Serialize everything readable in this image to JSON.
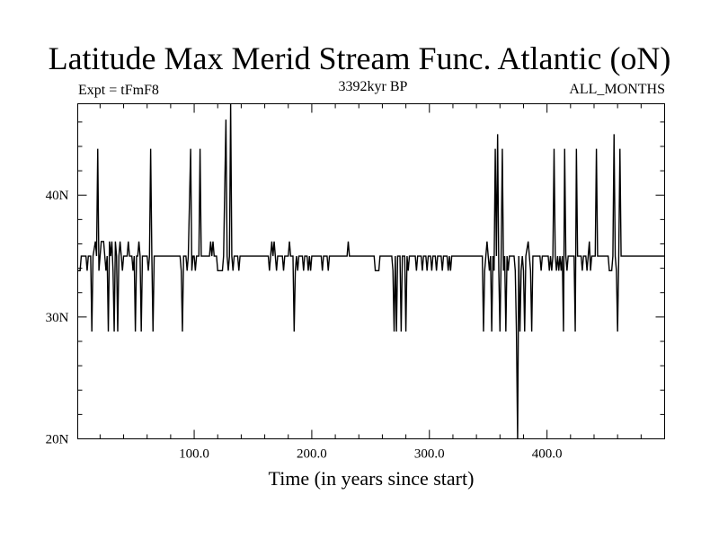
{
  "chart_data": {
    "type": "line",
    "title": "Latitude Max Merid Stream Func. Atlantic (oN)",
    "subtitle_left": "Expt = tFmF8",
    "subtitle_center": "3392kyr BP",
    "subtitle_right": "ALL_MONTHS",
    "xlabel": "Time (in years since start)",
    "ylabel": "",
    "xlim": [
      1,
      500
    ],
    "ylim": [
      20,
      47.5
    ],
    "x_ticks": [
      100,
      200,
      300,
      400
    ],
    "x_tick_labels": [
      "100.0",
      "200.0",
      "300.0",
      "400.0"
    ],
    "y_ticks": [
      20,
      30,
      40
    ],
    "y_tick_labels": [
      "20N",
      "30N",
      "40N"
    ],
    "grid": false,
    "series": [
      {
        "color": "#000000",
        "points": [
          [
            1,
            33.8
          ],
          [
            3,
            33.8
          ],
          [
            4,
            35
          ],
          [
            8,
            35
          ],
          [
            9,
            33.8
          ],
          [
            10,
            35
          ],
          [
            12,
            35
          ],
          [
            13,
            28.8
          ],
          [
            14,
            35
          ],
          [
            16,
            36.2
          ],
          [
            17,
            35
          ],
          [
            18,
            43.8
          ],
          [
            19,
            33.8
          ],
          [
            20,
            35
          ],
          [
            21,
            36.2
          ],
          [
            23,
            36.2
          ],
          [
            24,
            35
          ],
          [
            25,
            33.8
          ],
          [
            26,
            35
          ],
          [
            27,
            28.8
          ],
          [
            28,
            36.2
          ],
          [
            29,
            35
          ],
          [
            30,
            36.2
          ],
          [
            31,
            33.8
          ],
          [
            32,
            28.8
          ],
          [
            33,
            36.2
          ],
          [
            34,
            35
          ],
          [
            35,
            28.8
          ],
          [
            36,
            35
          ],
          [
            37,
            36.2
          ],
          [
            38,
            35
          ],
          [
            39,
            33.8
          ],
          [
            40,
            35
          ],
          [
            43,
            35
          ],
          [
            44,
            36.2
          ],
          [
            45,
            35
          ],
          [
            47,
            35
          ],
          [
            48,
            33.8
          ],
          [
            49,
            35
          ],
          [
            50,
            28.8
          ],
          [
            51,
            35
          ],
          [
            52,
            35
          ],
          [
            53,
            36.2
          ],
          [
            54,
            35
          ],
          [
            55,
            28.8
          ],
          [
            56,
            35
          ],
          [
            60,
            35
          ],
          [
            61,
            33.8
          ],
          [
            62,
            35
          ],
          [
            63,
            43.8
          ],
          [
            64,
            35
          ],
          [
            65,
            28.8
          ],
          [
            66,
            35
          ],
          [
            88,
            35
          ],
          [
            89,
            33.8
          ],
          [
            90,
            28.8
          ],
          [
            91,
            35
          ],
          [
            93,
            35
          ],
          [
            94,
            33.8
          ],
          [
            95,
            35
          ],
          [
            97,
            43.8
          ],
          [
            98,
            33.8
          ],
          [
            99,
            35
          ],
          [
            100,
            35
          ],
          [
            101,
            33.8
          ],
          [
            102,
            35
          ],
          [
            104,
            35
          ],
          [
            105,
            43.8
          ],
          [
            106,
            35
          ],
          [
            113,
            35
          ],
          [
            114,
            36.2
          ],
          [
            115,
            35
          ],
          [
            116,
            36.2
          ],
          [
            117,
            35
          ],
          [
            119,
            35
          ],
          [
            120,
            33.8
          ],
          [
            124,
            33.8
          ],
          [
            125,
            35
          ],
          [
            127,
            46.2
          ],
          [
            128,
            35
          ],
          [
            129,
            33.8
          ],
          [
            130,
            35
          ],
          [
            131,
            47.5
          ],
          [
            132,
            35
          ],
          [
            133,
            33.8
          ],
          [
            134,
            35
          ],
          [
            137,
            35
          ],
          [
            138,
            33.8
          ],
          [
            139,
            35
          ],
          [
            163,
            35
          ],
          [
            164,
            33.8
          ],
          [
            165,
            35
          ],
          [
            166,
            36.2
          ],
          [
            167,
            35
          ],
          [
            168,
            36.2
          ],
          [
            169,
            35
          ],
          [
            170,
            33.8
          ],
          [
            171,
            35
          ],
          [
            175,
            35
          ],
          [
            176,
            33.8
          ],
          [
            177,
            35
          ],
          [
            180,
            35
          ],
          [
            181,
            36.2
          ],
          [
            182,
            35
          ],
          [
            184,
            35
          ],
          [
            185,
            28.8
          ],
          [
            186,
            33.8
          ],
          [
            187,
            35
          ],
          [
            188,
            33.8
          ],
          [
            189,
            35
          ],
          [
            192,
            35
          ],
          [
            193,
            33.8
          ],
          [
            194,
            35
          ],
          [
            196,
            35
          ],
          [
            197,
            33.8
          ],
          [
            198,
            35
          ],
          [
            199,
            33.8
          ],
          [
            200,
            35
          ],
          [
            208,
            35
          ],
          [
            209,
            33.8
          ],
          [
            210,
            35
          ],
          [
            213,
            35
          ],
          [
            214,
            33.8
          ],
          [
            215,
            35
          ],
          [
            230,
            35
          ],
          [
            231,
            36.2
          ],
          [
            232,
            35
          ],
          [
            253,
            35
          ],
          [
            254,
            33.8
          ],
          [
            257,
            33.8
          ],
          [
            258,
            35
          ],
          [
            268,
            35
          ],
          [
            269,
            33.8
          ],
          [
            270,
            28.8
          ],
          [
            271,
            35
          ],
          [
            272,
            28.8
          ],
          [
            273,
            35
          ],
          [
            275,
            35
          ],
          [
            276,
            28.8
          ],
          [
            277,
            35
          ],
          [
            279,
            35
          ],
          [
            280,
            28.8
          ],
          [
            281,
            35
          ],
          [
            282,
            33.8
          ],
          [
            283,
            35
          ],
          [
            288,
            35
          ],
          [
            289,
            33.8
          ],
          [
            290,
            35
          ],
          [
            293,
            35
          ],
          [
            294,
            33.8
          ],
          [
            295,
            35
          ],
          [
            297,
            35
          ],
          [
            298,
            33.8
          ],
          [
            299,
            35
          ],
          [
            301,
            35
          ],
          [
            302,
            33.8
          ],
          [
            303,
            35
          ],
          [
            305,
            35
          ],
          [
            306,
            33.8
          ],
          [
            307,
            35
          ],
          [
            310,
            35
          ],
          [
            311,
            33.8
          ],
          [
            312,
            35
          ],
          [
            315,
            35
          ],
          [
            316,
            33.8
          ],
          [
            317,
            35
          ],
          [
            318,
            33.8
          ],
          [
            319,
            35
          ],
          [
            345,
            35
          ],
          [
            346,
            28.8
          ],
          [
            347,
            33.8
          ],
          [
            348,
            35
          ],
          [
            349,
            36.2
          ],
          [
            350,
            35
          ],
          [
            351,
            33.8
          ],
          [
            352,
            35
          ],
          [
            353,
            28.8
          ],
          [
            354,
            35
          ],
          [
            355,
            33.8
          ],
          [
            356,
            43.8
          ],
          [
            357,
            35
          ],
          [
            358,
            45
          ],
          [
            359,
            33.8
          ],
          [
            360,
            28.8
          ],
          [
            361,
            35
          ],
          [
            362,
            43.8
          ],
          [
            363,
            33.8
          ],
          [
            364,
            35
          ],
          [
            365,
            28.8
          ],
          [
            366,
            35
          ],
          [
            367,
            33.8
          ],
          [
            368,
            35
          ],
          [
            372,
            35
          ],
          [
            373,
            33.8
          ],
          [
            374,
            28.8
          ],
          [
            375,
            20
          ],
          [
            376,
            35
          ],
          [
            377,
            28.8
          ],
          [
            378,
            33.8
          ],
          [
            379,
            35
          ],
          [
            380,
            33.8
          ],
          [
            381,
            28.8
          ],
          [
            382,
            35
          ],
          [
            384,
            36.2
          ],
          [
            385,
            35
          ],
          [
            386,
            33.8
          ],
          [
            387,
            28.8
          ],
          [
            388,
            35
          ],
          [
            394,
            35
          ],
          [
            395,
            33.8
          ],
          [
            396,
            35
          ],
          [
            401,
            35
          ],
          [
            402,
            33.8
          ],
          [
            403,
            35
          ],
          [
            404,
            33.8
          ],
          [
            405,
            35
          ],
          [
            406,
            43.8
          ],
          [
            407,
            35
          ],
          [
            408,
            33.8
          ],
          [
            409,
            35
          ],
          [
            410,
            33.8
          ],
          [
            411,
            35
          ],
          [
            412,
            33.8
          ],
          [
            413,
            35
          ],
          [
            414,
            28.8
          ],
          [
            415,
            43.8
          ],
          [
            416,
            35
          ],
          [
            417,
            33.8
          ],
          [
            418,
            35
          ],
          [
            423,
            35
          ],
          [
            424,
            28.8
          ],
          [
            425,
            43.8
          ],
          [
            426,
            35
          ],
          [
            429,
            35
          ],
          [
            430,
            33.8
          ],
          [
            431,
            35
          ],
          [
            433,
            35
          ],
          [
            434,
            33.8
          ],
          [
            435,
            35
          ],
          [
            436,
            36.2
          ],
          [
            437,
            33.8
          ],
          [
            438,
            35
          ],
          [
            441,
            35
          ],
          [
            442,
            43.8
          ],
          [
            443,
            35
          ],
          [
            452,
            35
          ],
          [
            453,
            33.8
          ],
          [
            455,
            33.8
          ],
          [
            456,
            35
          ],
          [
            457,
            45
          ],
          [
            458,
            35
          ],
          [
            459,
            33.8
          ],
          [
            460,
            28.8
          ],
          [
            461,
            35
          ],
          [
            462,
            43.8
          ],
          [
            463,
            35
          ],
          [
            500,
            35
          ]
        ]
      }
    ]
  }
}
